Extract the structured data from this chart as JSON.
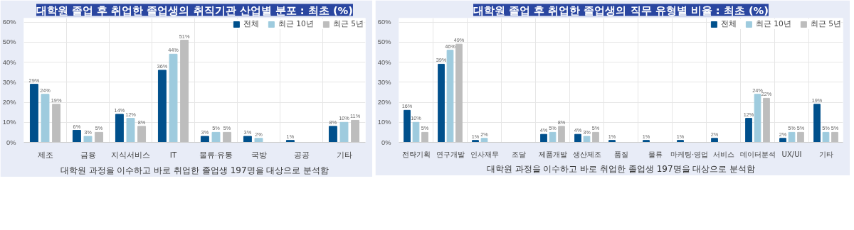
{
  "chart_data": [
    {
      "type": "bar",
      "title": "대학원 졸업 후 취업한 졸업생의 취직기관 산업별 분포 : 최초 (%)",
      "categories": [
        "제조",
        "금융",
        "지식서비스",
        "IT",
        "물류·유통",
        "국방",
        "공공",
        "기타"
      ],
      "series": [
        {
          "name": "전체",
          "color": "#00508c",
          "values": [
            29,
            6,
            14,
            36,
            3,
            3,
            1,
            8
          ],
          "value_labels": [
            "29%",
            "6%",
            "14%",
            "36%",
            "3%",
            "3%",
            "1%",
            "8%"
          ]
        },
        {
          "name": "최근 10년",
          "color": "#9ecbde",
          "values": [
            24,
            3,
            12,
            44,
            5,
            2,
            null,
            10
          ],
          "value_labels": [
            "24%",
            "3%",
            "12%",
            "44%",
            "5%",
            "2%",
            null,
            "10%"
          ]
        },
        {
          "name": "최근 5년",
          "color": "#bdbdbd",
          "values": [
            19,
            5,
            8,
            51,
            5,
            null,
            null,
            11
          ],
          "value_labels": [
            "19%",
            "5%",
            "8%",
            "51%",
            "5%",
            null,
            null,
            "11%"
          ]
        }
      ],
      "ylim": [
        0,
        62
      ],
      "yticks": [
        {
          "value": 0,
          "label": "0%"
        },
        {
          "value": 10,
          "label": "10%"
        },
        {
          "value": 20,
          "label": "20%"
        },
        {
          "value": 30,
          "label": "30%"
        },
        {
          "value": 40,
          "label": "40%"
        },
        {
          "value": 50,
          "label": "50%"
        },
        {
          "value": 60,
          "label": "60%"
        }
      ],
      "grid": true,
      "legend": "top right",
      "annotations": [
        "대학원 과정을 이수하고 바로 취업한 졸업생 197명을 대상으로 분석함"
      ]
    },
    {
      "type": "bar",
      "title": "대학원 졸업 후 취업한 졸업생의 직무 유형별 비율 : 최초 (%)",
      "categories": [
        "전략기획",
        "연구개발",
        "인사재무",
        "조달",
        "제품개발",
        "생산제조",
        "품질",
        "물류",
        "마케팅·영업",
        "서비스",
        "데이터분석",
        "UX/UI",
        "기타"
      ],
      "series": [
        {
          "name": "전체",
          "color": "#00508c",
          "values": [
            16,
            39,
            1,
            null,
            4,
            4,
            1,
            1,
            1,
            2,
            12,
            2,
            19
          ],
          "value_labels": [
            "16%",
            "39%",
            "1%",
            null,
            "4%",
            "4%",
            "1%",
            "1%",
            "1%",
            "2%",
            "12%",
            "2%",
            "19%"
          ]
        },
        {
          "name": "최근 10년",
          "color": "#9ecbde",
          "values": [
            10,
            46,
            2,
            null,
            5,
            3,
            null,
            null,
            null,
            null,
            24,
            5,
            5
          ],
          "value_labels": [
            "10%",
            "46%",
            "2%",
            null,
            "5%",
            "3%",
            null,
            null,
            null,
            null,
            "24%",
            "5%",
            "5%"
          ]
        },
        {
          "name": "최근 5년",
          "color": "#bdbdbd",
          "values": [
            5,
            49,
            null,
            null,
            8,
            5,
            null,
            null,
            null,
            null,
            22,
            5,
            5
          ],
          "value_labels": [
            "5%",
            "49%",
            null,
            null,
            "8%",
            "5%",
            null,
            null,
            null,
            null,
            "22%",
            "5%",
            "5%"
          ]
        }
      ],
      "ylim": [
        0,
        62
      ],
      "yticks": [
        {
          "value": 0,
          "label": "0%"
        },
        {
          "value": 10,
          "label": "10%"
        },
        {
          "value": 20,
          "label": "20%"
        },
        {
          "value": 30,
          "label": "30%"
        },
        {
          "value": 40,
          "label": "40%"
        },
        {
          "value": 50,
          "label": "50%"
        },
        {
          "value": 60,
          "label": "60%"
        }
      ],
      "grid": true,
      "legend": "top right",
      "annotations": [
        "대학원 과정을 이수하고 바로 취업한 졸업생 197명을 대상으로 분석함"
      ]
    }
  ]
}
